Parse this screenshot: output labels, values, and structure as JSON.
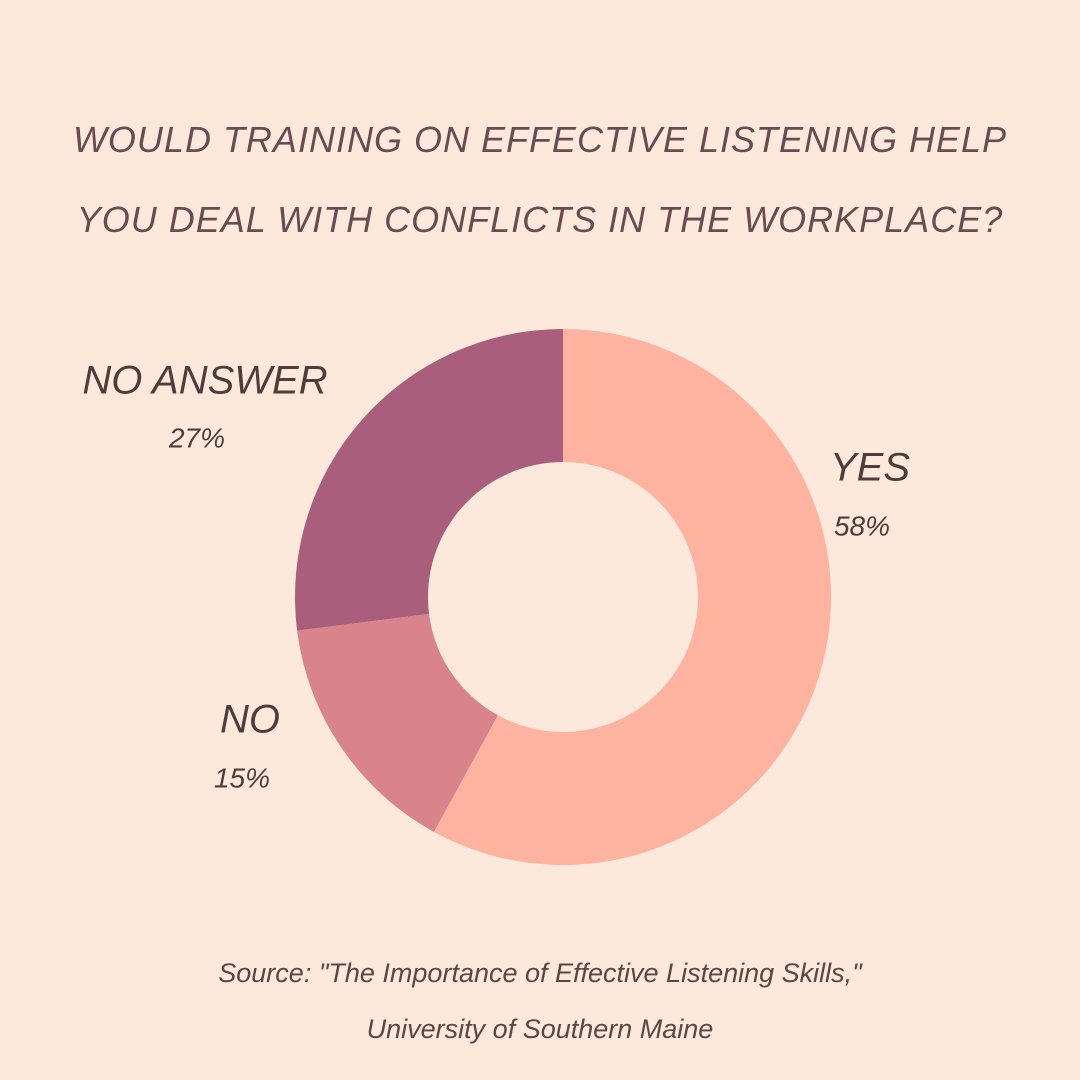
{
  "chart_data": {
    "type": "pie",
    "title": "WOULD TRAINING ON EFFECTIVE LISTENING HELP YOU DEAL WITH CONFLICTS IN THE WORKPLACE?",
    "categories": [
      "YES",
      "NO",
      "NO ANSWER"
    ],
    "values": [
      58,
      15,
      27
    ],
    "value_labels": [
      "58%",
      "15%",
      "27%"
    ],
    "colors": [
      "#fdb3a0",
      "#d9848b",
      "#a95f7b"
    ],
    "donut": true,
    "source": [
      "Source: \"The Importance of Effective Listening Skills,\"",
      "University of Southern Maine"
    ]
  }
}
